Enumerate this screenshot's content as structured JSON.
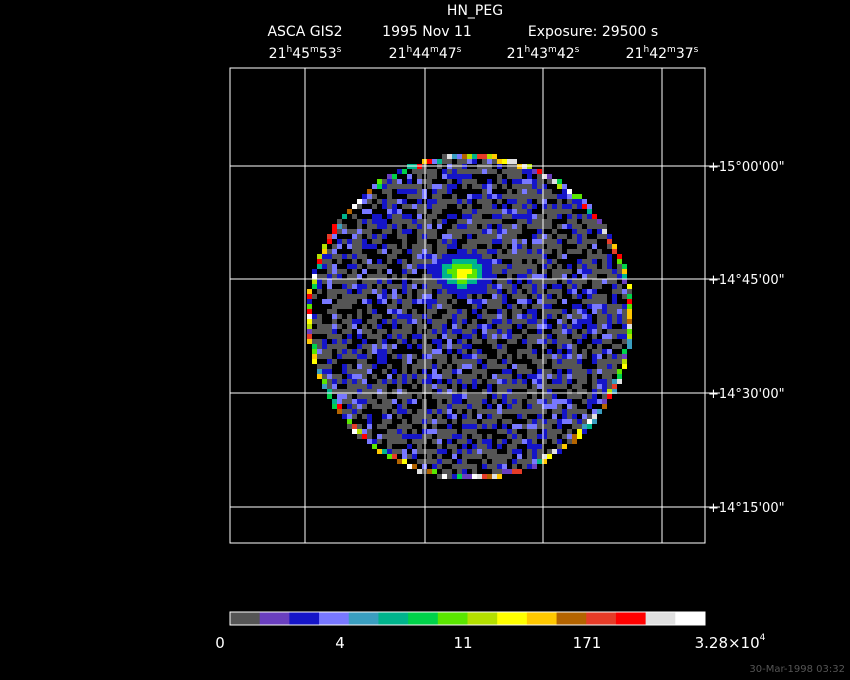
{
  "header": {
    "title": "HN_PEG",
    "instrument": "ASCA GIS2",
    "date": "1995 Nov 11",
    "exposure": "Exposure: 29500 s"
  },
  "ra_labels": [
    [
      "21",
      "h",
      "45",
      "m",
      "53",
      "s"
    ],
    [
      "21",
      "h",
      "44",
      "m",
      "47",
      "s"
    ],
    [
      "21",
      "h",
      "43",
      "m",
      "42",
      "s"
    ],
    [
      "21",
      "h",
      "42",
      "m",
      "37",
      "s"
    ]
  ],
  "dec_labels": [
    "+15°00'00\"",
    "+14°45'00\"",
    "+14°30'00\"",
    "+14°15'00\""
  ],
  "colorbar": {
    "colors": [
      "#555555",
      "#6a3fbf",
      "#1515c8",
      "#7878ff",
      "#3a9ec0",
      "#00b48c",
      "#00d24a",
      "#5ae600",
      "#b4e000",
      "#ffff00",
      "#ffc800",
      "#b46400",
      "#e63c28",
      "#ff0000",
      "#e0e0e0",
      "#ffffff"
    ],
    "labels": [
      [
        "0"
      ],
      [
        "4"
      ],
      [
        "11"
      ],
      [
        "171"
      ],
      [
        "3.28×10",
        "4"
      ]
    ]
  },
  "timestamp": "30-Mar-1998 03:32"
}
